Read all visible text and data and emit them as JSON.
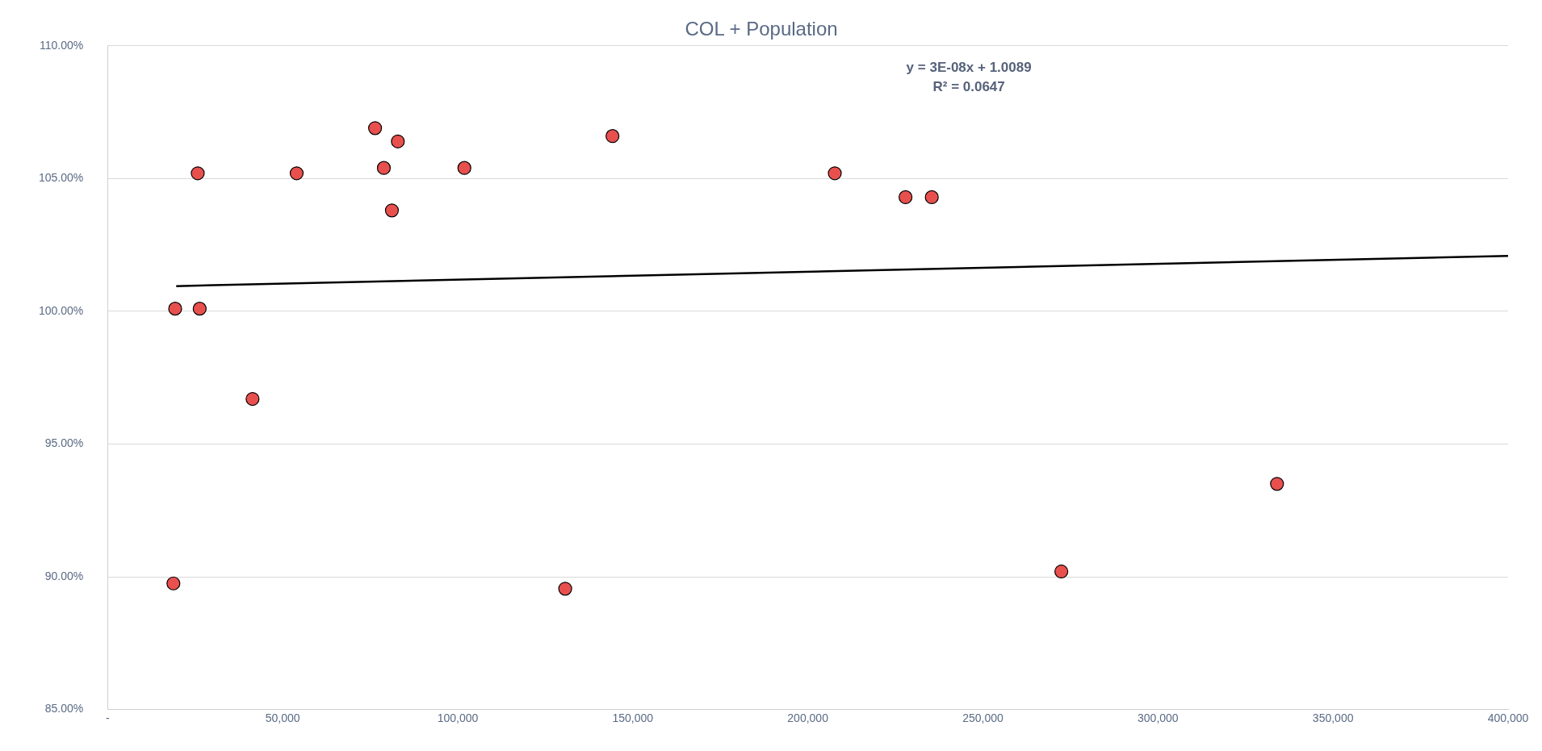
{
  "chart_data": {
    "type": "scatter",
    "title": "COL + Population",
    "annotations": [
      "y = 3E-08x + 1.0089",
      "R² = 0.0647"
    ],
    "series": [
      {
        "marker": "circle",
        "color": "#e8504e",
        "x": [
          25750,
          54000,
          76400,
          78900,
          82900,
          81200,
          101900,
          144200,
          207700,
          227900,
          235400,
          19300,
          26300,
          41400,
          18800,
          130700,
          272400,
          334000
        ],
        "values": [
          105.2,
          105.2,
          106.9,
          105.4,
          106.4,
          103.8,
          105.4,
          106.6,
          105.2,
          104.3,
          104.3,
          100.1,
          100.1,
          96.7,
          89.75,
          89.55,
          90.2,
          93.5
        ]
      },
      {
        "type": "line",
        "color": "#000000",
        "x": [
          19600,
          400000
        ],
        "values": [
          100.95,
          102.09
        ]
      }
    ],
    "xlim": [
      0,
      400000
    ],
    "xticks": [
      {
        "value": 0,
        "label": "-"
      },
      {
        "value": 50000,
        "label": "50,000"
      },
      {
        "value": 100000,
        "label": "100,000"
      },
      {
        "value": 150000,
        "label": "150,000"
      },
      {
        "value": 200000,
        "label": "200,000"
      },
      {
        "value": 250000,
        "label": "250,000"
      },
      {
        "value": 300000,
        "label": "300,000"
      },
      {
        "value": 350000,
        "label": "350,000"
      },
      {
        "value": 400000,
        "label": "400,000"
      }
    ],
    "ylim": [
      85,
      110
    ],
    "yticks": [
      {
        "value": 85,
        "label": "85.00%"
      },
      {
        "value": 90,
        "label": "90.00%"
      },
      {
        "value": 95,
        "label": "95.00%"
      },
      {
        "value": 100,
        "label": "100.00%"
      },
      {
        "value": 105,
        "label": "105.00%"
      },
      {
        "value": 110,
        "label": "110.00%"
      }
    ],
    "grid": "y",
    "legend": false
  }
}
